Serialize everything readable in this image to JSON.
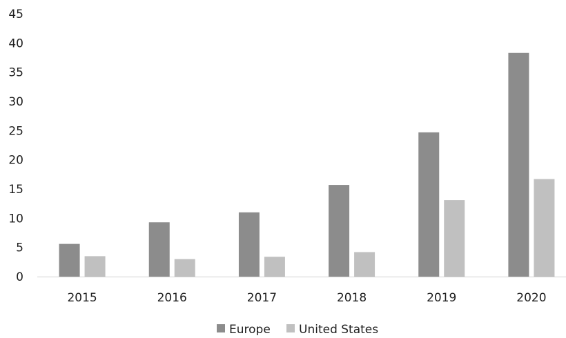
{
  "chart_data": {
    "type": "bar",
    "title": "",
    "xlabel": "",
    "ylabel": "",
    "categories": [
      "2015",
      "2016",
      "2017",
      "2018",
      "2019",
      "2020"
    ],
    "ylim": [
      0,
      45
    ],
    "yticks": [
      "0",
      "5",
      "10",
      "15",
      "20",
      "25",
      "30",
      "35",
      "40",
      "45"
    ],
    "grid": false,
    "legend_position": "bottom",
    "series": [
      {
        "name": "Europe",
        "color": "#8c8c8c",
        "values": [
          5.6,
          9.3,
          11.0,
          15.7,
          24.7,
          38.3
        ]
      },
      {
        "name": "United States",
        "color": "#c0c0c0",
        "values": [
          3.5,
          3.0,
          3.4,
          4.2,
          13.1,
          16.7
        ]
      }
    ]
  }
}
